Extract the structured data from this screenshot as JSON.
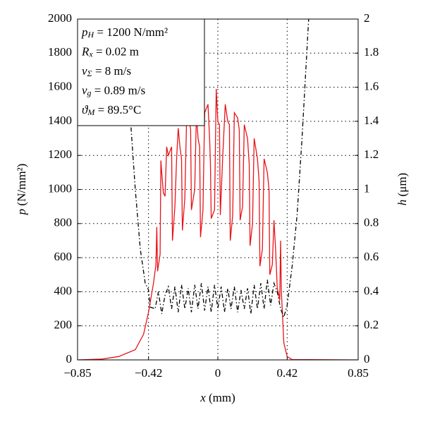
{
  "chart_data": {
    "type": "line",
    "x_label": {
      "symbol": "x",
      "unit": " (mm)"
    },
    "y_label": {
      "symbol": "p",
      "unit": " (N/mm²)"
    },
    "y2_label": {
      "symbol": "h",
      "unit": " (μm)"
    },
    "annotation": [
      {
        "main": "p",
        "sub": "H",
        "rest": " = 1200 N/mm²"
      },
      {
        "main": "R",
        "sub": "x",
        "rest": " = 0.02 m"
      },
      {
        "main": "v",
        "sub": "Σ",
        "rest": " = 8 m/s"
      },
      {
        "main": "v",
        "sub": "g",
        "rest": " = 0.89 m/s"
      },
      {
        "main": "ϑ",
        "sub": "M",
        "rest": " = 89.5°C"
      }
    ],
    "xlim": [
      -0.85,
      0.85
    ],
    "xticks": [
      {
        "value": -0.85,
        "label": "−0.85"
      },
      {
        "value": -0.42,
        "label": "−0.42"
      },
      0,
      0.42,
      0.85
    ],
    "ylim": [
      0,
      2000
    ],
    "yticks": [
      0,
      200,
      400,
      600,
      800,
      1000,
      1200,
      1400,
      1600,
      1800,
      2000
    ],
    "y2lim": [
      0,
      2
    ],
    "y2ticks": [
      0,
      0.2,
      0.4,
      0.6,
      0.8,
      1,
      1.2,
      1.4,
      1.6,
      1.8,
      2
    ],
    "grid": true,
    "series": [
      {
        "color": "#e8141a",
        "style": "solid",
        "x": [
          -0.85,
          -0.7,
          -0.6,
          -0.5,
          -0.45,
          -0.42,
          -0.39,
          -0.375,
          -0.37,
          -0.365,
          -0.35,
          -0.345,
          -0.34,
          -0.33,
          -0.32,
          -0.31,
          -0.3,
          -0.28,
          -0.275,
          -0.26,
          -0.25,
          -0.24,
          -0.23,
          -0.22,
          -0.215,
          -0.2,
          -0.19,
          -0.175,
          -0.165,
          -0.16,
          -0.14,
          -0.13,
          -0.12,
          -0.11,
          -0.105,
          -0.09,
          -0.08,
          -0.06,
          -0.05,
          -0.045,
          -0.04,
          -0.02,
          -0.01,
          0,
          0.01,
          0.015,
          0.03,
          0.045,
          0.06,
          0.07,
          0.075,
          0.09,
          0.1,
          0.12,
          0.13,
          0.135,
          0.15,
          0.16,
          0.18,
          0.19,
          0.195,
          0.21,
          0.22,
          0.24,
          0.25,
          0.255,
          0.27,
          0.28,
          0.3,
          0.31,
          0.315,
          0.33,
          0.34,
          0.35,
          0.36,
          0.37,
          0.375,
          0.38,
          0.385,
          0.4,
          0.42,
          0.45,
          0.85
        ],
        "values": [
          0,
          5,
          20,
          60,
          150,
          280,
          450,
          560,
          780,
          520,
          620,
          1170,
          1100,
          980,
          960,
          1250,
          1200,
          1250,
          700,
          900,
          1180,
          1360,
          1250,
          1180,
          760,
          950,
          1380,
          1420,
          1350,
          880,
          1000,
          1450,
          1300,
          1250,
          720,
          880,
          1450,
          1500,
          1300,
          1150,
          830,
          880,
          1590,
          1400,
          1380,
          850,
          1200,
          1500,
          1400,
          1380,
          700,
          850,
          1450,
          1420,
          1350,
          820,
          900,
          1380,
          1300,
          1150,
          670,
          800,
          1300,
          1180,
          1050,
          550,
          650,
          1180,
          1100,
          1000,
          500,
          560,
          820,
          650,
          420,
          380,
          350,
          700,
          400,
          100,
          20,
          2,
          0
        ]
      },
      {
        "color": "#000000",
        "style": "dashdot",
        "axis": "y2",
        "x": [
          -0.53,
          -0.5,
          -0.47,
          -0.44,
          -0.42,
          -0.41,
          -0.38,
          -0.36,
          -0.34,
          -0.32,
          -0.3,
          -0.28,
          -0.26,
          -0.24,
          -0.22,
          -0.2,
          -0.18,
          -0.16,
          -0.14,
          -0.12,
          -0.1,
          -0.08,
          -0.06,
          -0.04,
          -0.02,
          0,
          0.02,
          0.04,
          0.06,
          0.08,
          0.1,
          0.12,
          0.14,
          0.16,
          0.18,
          0.2,
          0.22,
          0.24,
          0.26,
          0.28,
          0.3,
          0.32,
          0.34,
          0.36,
          0.38,
          0.4,
          0.42,
          0.45,
          0.48,
          0.51,
          0.55
        ],
        "values": [
          1.42,
          1.0,
          0.65,
          0.45,
          0.41,
          0.31,
          0.3,
          0.4,
          0.27,
          0.38,
          0.43,
          0.3,
          0.43,
          0.28,
          0.44,
          0.3,
          0.42,
          0.28,
          0.44,
          0.3,
          0.45,
          0.29,
          0.43,
          0.28,
          0.44,
          0.3,
          0.43,
          0.28,
          0.42,
          0.3,
          0.43,
          0.28,
          0.41,
          0.3,
          0.42,
          0.27,
          0.44,
          0.3,
          0.45,
          0.3,
          0.47,
          0.32,
          0.45,
          0.4,
          0.3,
          0.25,
          0.32,
          0.55,
          0.85,
          1.3,
          2.0
        ]
      }
    ]
  }
}
